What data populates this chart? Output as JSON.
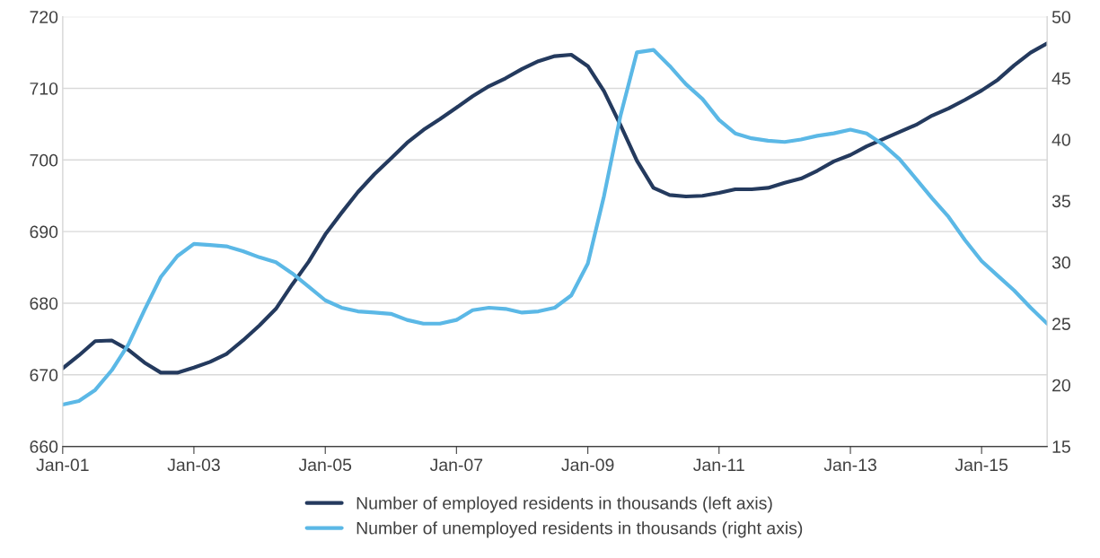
{
  "chart_data": {
    "type": "line",
    "x": [
      "2001-01",
      "2001-04",
      "2001-07",
      "2001-10",
      "2002-01",
      "2002-04",
      "2002-07",
      "2002-10",
      "2003-01",
      "2003-04",
      "2003-07",
      "2003-10",
      "2004-01",
      "2004-04",
      "2004-07",
      "2004-10",
      "2005-01",
      "2005-04",
      "2005-07",
      "2005-10",
      "2006-01",
      "2006-04",
      "2006-07",
      "2006-10",
      "2007-01",
      "2007-04",
      "2007-07",
      "2007-10",
      "2008-01",
      "2008-04",
      "2008-07",
      "2008-10",
      "2009-01",
      "2009-04",
      "2009-07",
      "2009-10",
      "2010-01",
      "2010-04",
      "2010-07",
      "2010-10",
      "2011-01",
      "2011-04",
      "2011-07",
      "2011-10",
      "2012-01",
      "2012-04",
      "2012-07",
      "2012-10",
      "2013-01",
      "2013-04",
      "2013-07",
      "2013-10",
      "2014-01",
      "2014-04",
      "2014-07",
      "2014-10",
      "2015-01",
      "2015-04",
      "2015-07",
      "2015-10",
      "2016-01"
    ],
    "series": [
      {
        "name": "Number of employed residents in thousands (left axis)",
        "color": "#243a5e",
        "values": [
          670.9,
          672.7,
          674.7,
          674.8,
          673.5,
          671.7,
          670.3,
          670.3,
          671.0,
          671.8,
          672.9,
          674.8,
          676.9,
          679.2,
          682.6,
          685.8,
          689.6,
          692.6,
          695.5,
          698.0,
          700.2,
          702.4,
          704.2,
          705.7,
          707.3,
          708.9,
          710.3,
          711.4,
          712.7,
          713.8,
          714.5,
          714.7,
          713.1,
          709.6,
          704.9,
          699.9,
          696.1,
          695.1,
          694.9,
          695.0,
          695.4,
          695.9,
          695.9,
          696.1,
          696.8,
          697.4,
          698.5,
          699.8,
          700.7,
          701.9,
          702.9,
          703.9,
          704.9,
          706.2,
          707.2,
          708.4,
          709.7,
          711.2,
          713.2,
          715.0,
          716.3
        ]
      },
      {
        "name": "Number of unemployed residents in thousands (right axis)",
        "color": "#5bb8e6",
        "axis": "y2",
        "values": [
          18.4,
          18.7,
          19.6,
          21.2,
          23.3,
          26.1,
          28.8,
          30.5,
          31.5,
          31.4,
          31.3,
          30.9,
          30.4,
          30.0,
          29.1,
          28.0,
          26.9,
          26.3,
          26.0,
          25.9,
          25.8,
          25.3,
          25.0,
          25.0,
          25.3,
          26.1,
          26.3,
          26.2,
          25.9,
          26.0,
          26.3,
          27.3,
          29.9,
          35.4,
          41.9,
          47.1,
          47.3,
          46.0,
          44.5,
          43.3,
          41.6,
          40.5,
          40.1,
          39.9,
          39.8,
          40.0,
          40.3,
          40.5,
          40.8,
          40.5,
          39.6,
          38.4,
          36.8,
          35.2,
          33.7,
          31.8,
          30.1,
          28.9,
          27.7,
          26.3,
          25.0
        ]
      }
    ],
    "xlim": [
      "2001-01",
      "2016-01"
    ],
    "xticks": [
      {
        "value": "2001-01",
        "label": "Jan-01"
      },
      {
        "value": "2003-01",
        "label": "Jan-03"
      },
      {
        "value": "2005-01",
        "label": "Jan-05"
      },
      {
        "value": "2007-01",
        "label": "Jan-07"
      },
      {
        "value": "2009-01",
        "label": "Jan-09"
      },
      {
        "value": "2011-01",
        "label": "Jan-11"
      },
      {
        "value": "2013-01",
        "label": "Jan-13"
      },
      {
        "value": "2015-01",
        "label": "Jan-15"
      }
    ],
    "ylim": [
      660,
      720
    ],
    "yticks": [
      660,
      670,
      680,
      690,
      700,
      710,
      720
    ],
    "y2lim": [
      15,
      50
    ],
    "y2ticks": [
      15,
      20,
      25,
      30,
      35,
      40,
      45,
      50
    ],
    "grid": "y",
    "legend": "bottom",
    "line_style": "solid",
    "marker": "none"
  }
}
